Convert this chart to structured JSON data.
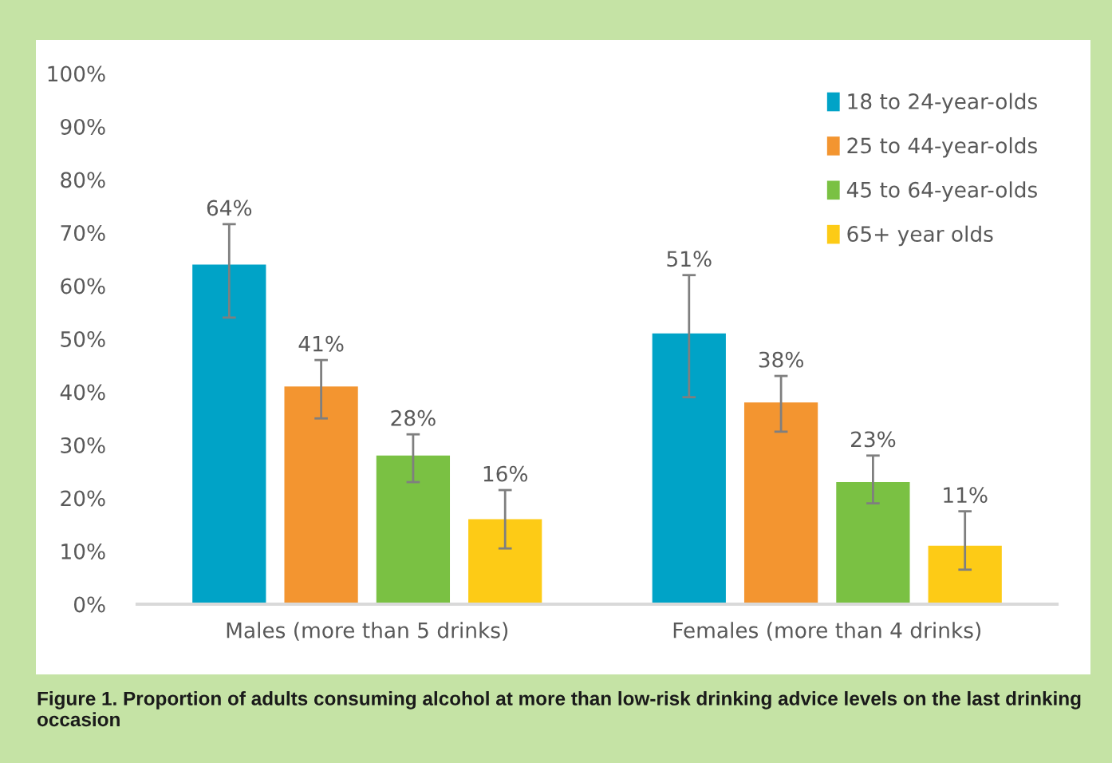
{
  "chart_data": {
    "type": "bar",
    "categories": [
      "Males (more than 5 drinks)",
      "Females (more than 4 drinks)"
    ],
    "series": [
      {
        "name": "18 to 24-year-olds",
        "color": "#00a3c7",
        "values": [
          64,
          51
        ],
        "errors": [
          [
            54,
            71.6
          ],
          [
            39,
            62
          ]
        ],
        "value_labels": [
          "64%",
          "51%"
        ]
      },
      {
        "name": "25 to 44-year-olds",
        "color": "#f39530",
        "values": [
          41,
          38
        ],
        "errors": [
          [
            35,
            46
          ],
          [
            32.5,
            43
          ]
        ],
        "value_labels": [
          "41%",
          "38%"
        ]
      },
      {
        "name": "45 to 64-year-olds",
        "color": "#7ac143",
        "values": [
          28,
          23
        ],
        "errors": [
          [
            23,
            32
          ],
          [
            19,
            28
          ]
        ],
        "value_labels": [
          "28%",
          "23%"
        ]
      },
      {
        "name": "65+ year olds",
        "color": "#fdcb16",
        "values": [
          16,
          11
        ],
        "errors": [
          [
            10.5,
            21.5
          ],
          [
            6.5,
            17.5
          ]
        ],
        "value_labels": [
          "16%",
          "11%"
        ]
      }
    ],
    "ylim": [
      0,
      100
    ],
    "yticks": [
      {
        "value": 0,
        "label": "0%"
      },
      {
        "value": 10,
        "label": "10%"
      },
      {
        "value": 20,
        "label": "20%"
      },
      {
        "value": 30,
        "label": "30%"
      },
      {
        "value": 40,
        "label": "40%"
      },
      {
        "value": 50,
        "label": "50%"
      },
      {
        "value": 60,
        "label": "60%"
      },
      {
        "value": 70,
        "label": "70%"
      },
      {
        "value": 80,
        "label": "80%"
      },
      {
        "value": 90,
        "label": "90%"
      },
      {
        "value": 100,
        "label": "100%"
      }
    ],
    "grid": false,
    "legend": "top right",
    "annotations": [
      "Figure 1. Proportion of adults consuming alcohol at more than low-risk drinking advice levels on the last drinking occasion"
    ]
  }
}
